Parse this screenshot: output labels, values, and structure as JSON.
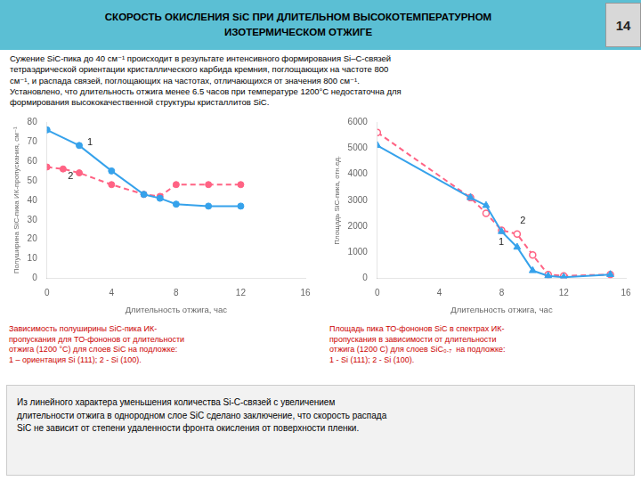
{
  "title": "СКОРОСТЬ ОКИСЛЕНИЯ SiC ПРИ ДЛИТЕЛЬНОМ ВЫСОКОТЕМПЕРАТУРНОМ\nИЗОТЕРМИЧЕСКОМ ОТЖИГЕ",
  "slide_number": "14",
  "paragraph": "Сужение SiC-пика до 40 см⁻¹ происходит в результате интенсивного формирования Si–C-связей\nтетраэдрической ориентации кристаллического карбида кремния, поглощающих на частоте 800\nсм⁻¹, и распада связей, поглощающих на частотах, отличающихся от значения 800 см⁻¹.\nУстановлено, что длительность отжига менее 6.5 часов при температуре 1200°C недостаточна для\nформирования высококачественной структуры кристаллитов SiC.",
  "chart_data": [
    {
      "type": "line",
      "xlabel": "Длительность отжига, час",
      "ylabel": "Полуширина SiC-пика ИК-пропускания, см⁻¹",
      "xlim": [
        0,
        16
      ],
      "ylim": [
        0,
        80
      ],
      "xticks": [
        0,
        4,
        8,
        12,
        16
      ],
      "yticks": [
        0,
        10,
        20,
        30,
        40,
        50,
        60,
        70,
        80
      ],
      "grid": false,
      "series": [
        {
          "x": [
            0,
            2,
            4,
            6,
            7,
            8,
            10,
            12
          ],
          "values": [
            76,
            68,
            55,
            43,
            41,
            38,
            37,
            37
          ],
          "line_style": "solid",
          "marker": "circle"
        },
        {
          "x": [
            0,
            1,
            2,
            4,
            6,
            7,
            8,
            10,
            12
          ],
          "values": [
            57,
            56,
            54,
            48,
            43,
            42,
            48,
            48,
            48
          ],
          "line_style": "dashed",
          "marker": "circle"
        }
      ],
      "annotations": [
        {
          "text": "1",
          "x": 2.5,
          "y": 68
        },
        {
          "text": "2",
          "x": 1.3,
          "y": 51
        }
      ],
      "caption": "Зависимость полуширины SiC-пика ИК-\nпропускания для ТО-фононов от длительности\nотжига (1200 °С) для слоев SiC на подложке:\n1 – ориентация Si (111); 2 - Si (100)."
    },
    {
      "type": "line",
      "xlabel": "Длительность отжига, час",
      "ylabel": "Площадь SiC-пика, отн.ед.",
      "xlim": [
        0,
        16
      ],
      "ylim": [
        0,
        6000
      ],
      "xticks": [
        0,
        4,
        8,
        12,
        16
      ],
      "yticks": [
        0,
        1000,
        2000,
        3000,
        4000,
        5000,
        6000
      ],
      "grid": false,
      "series": [
        {
          "x": [
            0,
            6,
            7,
            8,
            9,
            10,
            11,
            12,
            15
          ],
          "values": [
            5100,
            3100,
            2800,
            1800,
            1200,
            300,
            100,
            50,
            150
          ],
          "line_style": "solid",
          "marker": "triangle"
        },
        {
          "x": [
            0,
            6,
            7,
            8,
            9,
            10,
            11,
            12,
            15
          ],
          "values": [
            5600,
            3100,
            2500,
            1850,
            1700,
            900,
            150,
            100,
            150
          ],
          "line_style": "dashed",
          "marker": "open_circle"
        }
      ],
      "annotations": [
        {
          "text": "1",
          "x": 7.8,
          "y": 1300
        },
        {
          "text": "2",
          "x": 9.2,
          "y": 2100
        }
      ],
      "caption": "Площадь пика ТО-фононов SiC в спектрах ИК-\nпропускания в зависимости от длительности\nотжига (1200 С) для слоев SiC₀.₇  на подложке:\n1 - Si (111); 2 - Si (100)."
    }
  ],
  "footer": "Из линейного характера уменьшения количества Si-C-связей с увеличением\nдлительности отжига в однородном слое SiC сделано заключение, что скорость распада\nSiC не зависит от степени удаленности фронта окисления от поверхности пленки."
}
